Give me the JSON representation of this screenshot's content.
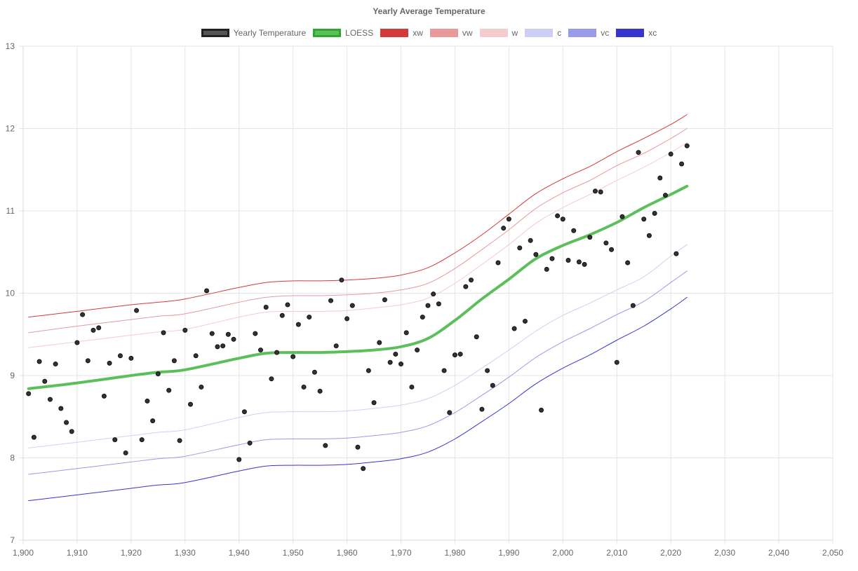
{
  "chart_data": {
    "type": "scatter",
    "title": "Yearly Average Temperature",
    "xlabel": "",
    "ylabel": "",
    "xlim": [
      1900,
      2050
    ],
    "ylim": [
      7,
      13
    ],
    "x_ticks": [
      "1,900",
      "1,910",
      "1,920",
      "1,930",
      "1,940",
      "1,950",
      "1,960",
      "1,970",
      "1,980",
      "1,990",
      "2,000",
      "2,010",
      "2,020",
      "2,030",
      "2,040",
      "2,050"
    ],
    "y_ticks": [
      "7",
      "8",
      "9",
      "10",
      "11",
      "12",
      "13"
    ],
    "grid": true,
    "legend_position": "top",
    "legend": [
      {
        "label": "Yearly Temperature",
        "fill": "#555555",
        "stroke": "#222222"
      },
      {
        "label": "LOESS",
        "fill": "#5cbf5c",
        "stroke": "#2ca82c"
      },
      {
        "label": "xw",
        "fill": "#d43a3a",
        "stroke": "#d43a3a"
      },
      {
        "label": "vw",
        "fill": "#e89a9a",
        "stroke": "#e89a9a"
      },
      {
        "label": "w",
        "fill": "#f5cccc",
        "stroke": "#f5cccc"
      },
      {
        "label": "c",
        "fill": "#cfcff5",
        "stroke": "#cfcff5"
      },
      {
        "label": "vc",
        "fill": "#9a9aeb",
        "stroke": "#9a9aeb"
      },
      {
        "label": "xc",
        "fill": "#3535d0",
        "stroke": "#3535d0"
      }
    ],
    "points": {
      "name": "Yearly Temperature",
      "x": [
        1901,
        1902,
        1903,
        1904,
        1905,
        1906,
        1907,
        1908,
        1909,
        1910,
        1911,
        1912,
        1913,
        1914,
        1915,
        1916,
        1917,
        1918,
        1919,
        1920,
        1921,
        1922,
        1923,
        1924,
        1925,
        1926,
        1927,
        1928,
        1929,
        1930,
        1931,
        1932,
        1933,
        1934,
        1935,
        1936,
        1937,
        1938,
        1939,
        1940,
        1941,
        1942,
        1943,
        1944,
        1945,
        1946,
        1947,
        1948,
        1949,
        1950,
        1951,
        1952,
        1953,
        1954,
        1955,
        1956,
        1957,
        1958,
        1959,
        1960,
        1961,
        1962,
        1963,
        1964,
        1965,
        1966,
        1967,
        1968,
        1969,
        1970,
        1971,
        1972,
        1973,
        1974,
        1975,
        1976,
        1977,
        1978,
        1979,
        1980,
        1981,
        1982,
        1983,
        1984,
        1985,
        1986,
        1987,
        1988,
        1989,
        1990,
        1991,
        1992,
        1993,
        1994,
        1995,
        1996,
        1997,
        1998,
        1999,
        2000,
        2001,
        2002,
        2003,
        2004,
        2005,
        2006,
        2007,
        2008,
        2009,
        2010,
        2011,
        2012,
        2013,
        2014,
        2015,
        2016,
        2017,
        2018,
        2019,
        2020,
        2021,
        2022,
        2023
      ],
      "y": [
        8.78,
        8.25,
        9.17,
        8.93,
        8.71,
        9.14,
        8.6,
        8.43,
        8.32,
        9.4,
        9.74,
        9.18,
        9.55,
        9.58,
        8.75,
        9.15,
        8.22,
        9.24,
        8.06,
        9.21,
        9.79,
        8.22,
        8.69,
        8.45,
        9.02,
        9.52,
        8.82,
        9.18,
        8.21,
        9.55,
        8.65,
        9.24,
        8.86,
        10.03,
        9.51,
        9.35,
        9.36,
        9.5,
        9.44,
        7.98,
        8.56,
        8.18,
        9.51,
        9.31,
        9.83,
        8.96,
        9.28,
        9.73,
        9.86,
        9.23,
        9.62,
        8.86,
        9.71,
        9.04,
        8.81,
        8.15,
        9.91,
        9.36,
        10.16,
        9.69,
        9.85,
        8.13,
        7.87,
        9.06,
        8.67,
        9.4,
        9.92,
        9.16,
        9.26,
        9.14,
        9.52,
        8.86,
        9.31,
        9.71,
        9.85,
        9.99,
        9.87,
        9.06,
        8.55,
        9.25,
        9.26,
        10.08,
        10.16,
        9.47,
        8.59,
        9.06,
        8.88,
        10.37,
        10.79,
        10.9,
        9.57,
        10.55,
        9.66,
        10.64,
        10.47,
        8.58,
        10.29,
        10.42,
        10.94,
        10.9,
        10.4,
        10.76,
        10.38,
        10.35,
        10.68,
        11.24,
        11.23,
        10.61,
        10.53,
        9.16,
        10.93,
        10.37,
        9.85,
        11.71,
        10.9,
        10.7,
        10.97,
        11.4,
        11.19,
        11.69,
        10.48,
        11.57,
        11.79
      ]
    },
    "series": [
      {
        "name": "LOESS",
        "x": [
          1901,
          1910,
          1920,
          1925,
          1930,
          1940,
          1945,
          1950,
          1955,
          1960,
          1965,
          1970,
          1975,
          1980,
          1985,
          1990,
          1995,
          2000,
          2005,
          2010,
          2015,
          2020,
          2023
        ],
        "values": [
          8.84,
          8.91,
          9.0,
          9.04,
          9.07,
          9.21,
          9.27,
          9.28,
          9.28,
          9.29,
          9.31,
          9.35,
          9.45,
          9.67,
          9.93,
          10.17,
          10.42,
          10.58,
          10.71,
          10.86,
          11.04,
          11.2,
          11.3
        ]
      },
      {
        "name": "xw",
        "x": [
          1901,
          1910,
          1920,
          1925,
          1930,
          1940,
          1945,
          1950,
          1955,
          1960,
          1965,
          1970,
          1975,
          1980,
          1985,
          1990,
          1995,
          2000,
          2005,
          2010,
          2015,
          2020,
          2023
        ],
        "values": [
          9.71,
          9.78,
          9.86,
          9.89,
          9.93,
          10.07,
          10.13,
          10.15,
          10.15,
          10.16,
          10.18,
          10.22,
          10.31,
          10.49,
          10.71,
          10.96,
          11.21,
          11.39,
          11.54,
          11.72,
          11.88,
          12.05,
          12.17
        ]
      },
      {
        "name": "vw",
        "x": [
          1901,
          1910,
          1920,
          1925,
          1930,
          1940,
          1945,
          1950,
          1955,
          1960,
          1965,
          1970,
          1975,
          1980,
          1985,
          1990,
          1995,
          2000,
          2005,
          2010,
          2015,
          2020,
          2023
        ],
        "values": [
          9.52,
          9.6,
          9.68,
          9.72,
          9.75,
          9.89,
          9.95,
          9.97,
          9.97,
          9.98,
          10.0,
          10.04,
          10.12,
          10.3,
          10.53,
          10.77,
          11.03,
          11.22,
          11.37,
          11.55,
          11.7,
          11.88,
          12.0
        ]
      },
      {
        "name": "w",
        "x": [
          1901,
          1910,
          1920,
          1925,
          1930,
          1940,
          1945,
          1950,
          1955,
          1960,
          1965,
          1970,
          1975,
          1980,
          1985,
          1990,
          1995,
          2000,
          2005,
          2010,
          2015,
          2020,
          2023
        ],
        "values": [
          9.34,
          9.41,
          9.49,
          9.53,
          9.56,
          9.71,
          9.77,
          9.78,
          9.78,
          9.79,
          9.82,
          9.86,
          9.94,
          10.12,
          10.35,
          10.59,
          10.85,
          11.04,
          11.2,
          11.37,
          11.53,
          11.71,
          11.83
        ]
      },
      {
        "name": "c",
        "x": [
          1901,
          1910,
          1920,
          1925,
          1930,
          1940,
          1945,
          1950,
          1955,
          1960,
          1965,
          1970,
          1975,
          1980,
          1985,
          1990,
          1995,
          2000,
          2005,
          2010,
          2015,
          2020,
          2023
        ],
        "values": [
          8.12,
          8.19,
          8.27,
          8.31,
          8.34,
          8.49,
          8.55,
          8.56,
          8.56,
          8.57,
          8.6,
          8.64,
          8.72,
          8.88,
          9.09,
          9.31,
          9.54,
          9.73,
          9.88,
          10.04,
          10.2,
          10.45,
          10.59
        ]
      },
      {
        "name": "vc",
        "x": [
          1901,
          1910,
          1920,
          1925,
          1930,
          1940,
          1945,
          1950,
          1955,
          1960,
          1965,
          1970,
          1975,
          1980,
          1985,
          1990,
          1995,
          2000,
          2005,
          2010,
          2015,
          2020,
          2023
        ],
        "values": [
          7.8,
          7.87,
          7.95,
          7.99,
          8.02,
          8.16,
          8.22,
          8.23,
          8.23,
          8.24,
          8.27,
          8.31,
          8.39,
          8.55,
          8.76,
          8.98,
          9.22,
          9.41,
          9.57,
          9.74,
          9.9,
          10.13,
          10.27
        ]
      },
      {
        "name": "xc",
        "x": [
          1901,
          1910,
          1920,
          1925,
          1930,
          1940,
          1945,
          1950,
          1955,
          1960,
          1965,
          1970,
          1975,
          1980,
          1985,
          1990,
          1995,
          2000,
          2005,
          2010,
          2015,
          2020,
          2023
        ],
        "values": [
          7.48,
          7.55,
          7.63,
          7.67,
          7.7,
          7.84,
          7.9,
          7.91,
          7.91,
          7.92,
          7.95,
          7.99,
          8.07,
          8.23,
          8.44,
          8.66,
          8.9,
          9.09,
          9.25,
          9.43,
          9.6,
          9.81,
          9.95
        ]
      }
    ]
  }
}
